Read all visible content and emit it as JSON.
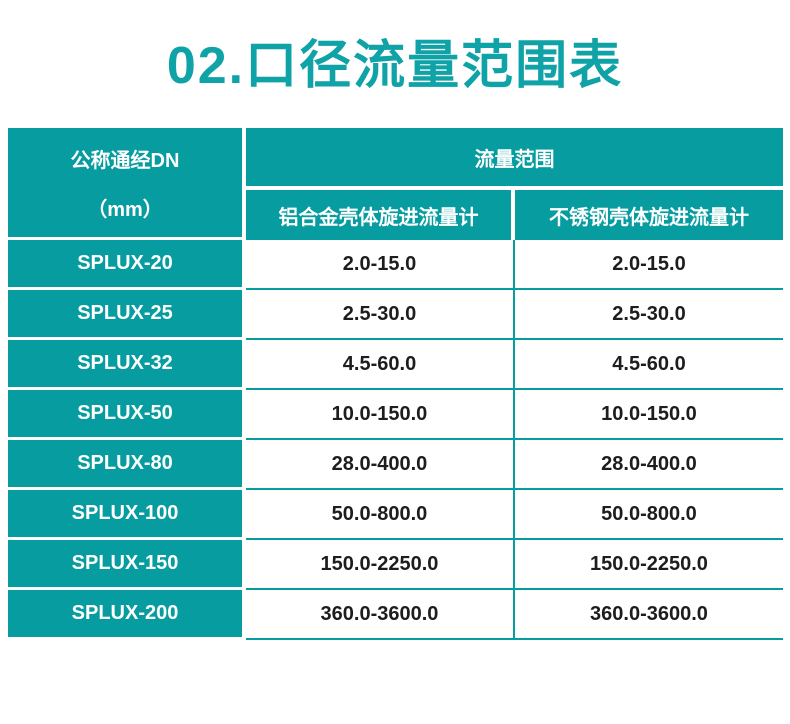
{
  "title": "02.口径流量范围表",
  "colors": {
    "title_teal": "#0fa3a8",
    "table_teal": "#079ca0",
    "header_text": "#ffffff",
    "cell_text": "#1d1d1f",
    "background": "#ffffff"
  },
  "table": {
    "header": {
      "col1_line1": "公称通经DN",
      "col1_line2": "（mm）",
      "flow_range": "流量范围",
      "sub_aluminum": "铝合金壳体旋进流量计",
      "sub_stainless": "不锈钢壳体旋进流量计"
    },
    "rows": [
      {
        "model": "SPLUX-20",
        "aluminum": "2.0-15.0",
        "stainless": "2.0-15.0"
      },
      {
        "model": "SPLUX-25",
        "aluminum": "2.5-30.0",
        "stainless": "2.5-30.0"
      },
      {
        "model": "SPLUX-32",
        "aluminum": "4.5-60.0",
        "stainless": "4.5-60.0"
      },
      {
        "model": "SPLUX-50",
        "aluminum": "10.0-150.0",
        "stainless": "10.0-150.0"
      },
      {
        "model": "SPLUX-80",
        "aluminum": "28.0-400.0",
        "stainless": "28.0-400.0"
      },
      {
        "model": "SPLUX-100",
        "aluminum": "50.0-800.0",
        "stainless": "50.0-800.0"
      },
      {
        "model": "SPLUX-150",
        "aluminum": "150.0-2250.0",
        "stainless": "150.0-2250.0"
      },
      {
        "model": "SPLUX-200",
        "aluminum": "360.0-3600.0",
        "stainless": "360.0-3600.0"
      }
    ]
  },
  "chart_data": {
    "type": "table",
    "title": "02.口径流量范围表",
    "columns": [
      "公称通经DN（mm）",
      "流量范围 - 铝合金壳体旋进流量计",
      "流量范围 - 不锈钢壳体旋进流量计"
    ],
    "rows": [
      [
        "SPLUX-20",
        "2.0-15.0",
        "2.0-15.0"
      ],
      [
        "SPLUX-25",
        "2.5-30.0",
        "2.5-30.0"
      ],
      [
        "SPLUX-32",
        "4.5-60.0",
        "4.5-60.0"
      ],
      [
        "SPLUX-50",
        "10.0-150.0",
        "10.0-150.0"
      ],
      [
        "SPLUX-80",
        "28.0-400.0",
        "28.0-400.0"
      ],
      [
        "SPLUX-100",
        "50.0-800.0",
        "50.0-800.0"
      ],
      [
        "SPLUX-150",
        "150.0-2250.0",
        "150.0-2250.0"
      ],
      [
        "SPLUX-200",
        "360.0-3600.0",
        "360.0-3600.0"
      ]
    ]
  }
}
